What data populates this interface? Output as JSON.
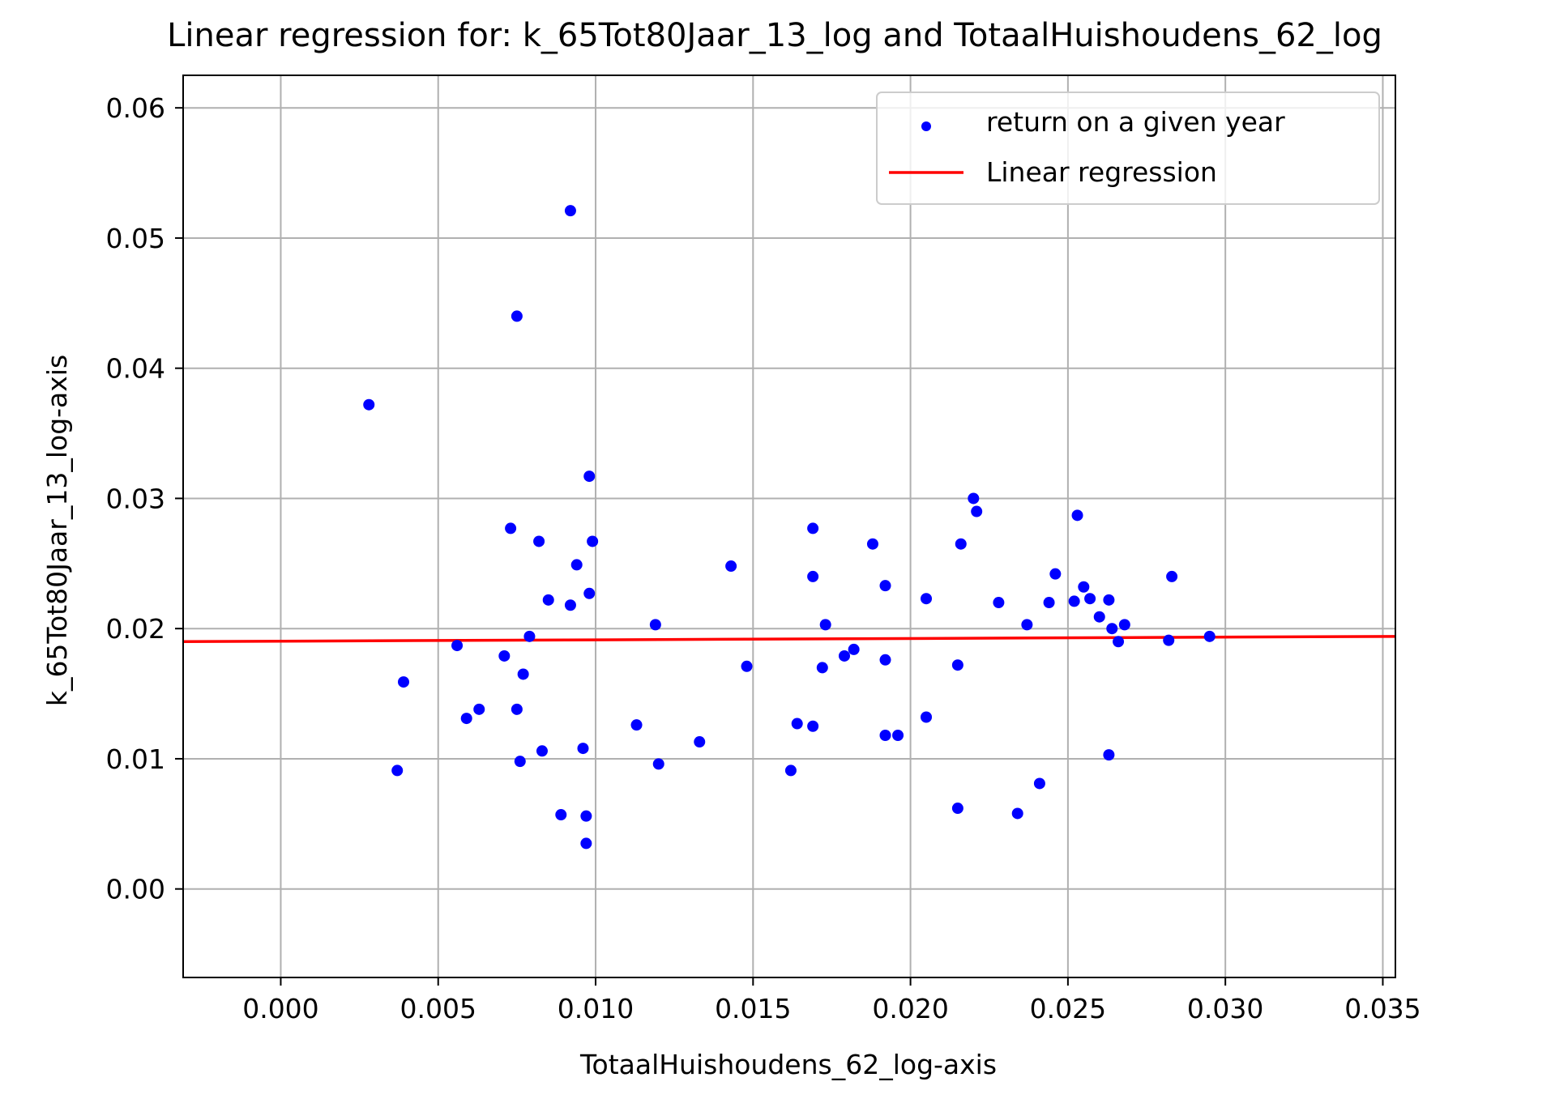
{
  "chart_data": {
    "type": "scatter",
    "title": "Linear regression for: k_65Tot80Jaar_13_log and TotaalHuishoudens_62_log",
    "xlabel": "TotaalHuishoudens_62_log-axis",
    "ylabel": "k_65Tot80Jaar_13_log-axis",
    "xlim": [
      -0.0031,
      0.0354
    ],
    "ylim": [
      -0.0068,
      0.0625
    ],
    "xticks": [
      0.0,
      0.005,
      0.01,
      0.015,
      0.02,
      0.025,
      0.03,
      0.035
    ],
    "xtick_labels": [
      "0.000",
      "0.005",
      "0.010",
      "0.015",
      "0.020",
      "0.025",
      "0.030",
      "0.035"
    ],
    "yticks": [
      0.0,
      0.01,
      0.02,
      0.03,
      0.04,
      0.05,
      0.06
    ],
    "ytick_labels": [
      "0.00",
      "0.01",
      "0.02",
      "0.03",
      "0.04",
      "0.05",
      "0.06"
    ],
    "grid": true,
    "legend_position": "top-right",
    "series": [
      {
        "name": "return on a given year",
        "kind": "scatter",
        "color": "#0000ff",
        "points": [
          [
            0.0028,
            0.0372
          ],
          [
            0.0037,
            0.0091
          ],
          [
            0.0039,
            0.0159
          ],
          [
            0.0056,
            0.0187
          ],
          [
            0.0059,
            0.0131
          ],
          [
            0.0063,
            0.0138
          ],
          [
            0.0071,
            0.0179
          ],
          [
            0.0073,
            0.0277
          ],
          [
            0.0075,
            0.044
          ],
          [
            0.0075,
            0.0138
          ],
          [
            0.0076,
            0.0098
          ],
          [
            0.0077,
            0.0165
          ],
          [
            0.0079,
            0.0194
          ],
          [
            0.0082,
            0.0267
          ],
          [
            0.0083,
            0.0106
          ],
          [
            0.0085,
            0.0222
          ],
          [
            0.0089,
            0.0057
          ],
          [
            0.0092,
            0.0218
          ],
          [
            0.0092,
            0.0521
          ],
          [
            0.0094,
            0.0249
          ],
          [
            0.0096,
            0.0108
          ],
          [
            0.0097,
            0.0035
          ],
          [
            0.0097,
            0.0056
          ],
          [
            0.0098,
            0.0227
          ],
          [
            0.0098,
            0.0317
          ],
          [
            0.0099,
            0.0267
          ],
          [
            0.0113,
            0.0126
          ],
          [
            0.0119,
            0.0203
          ],
          [
            0.012,
            0.0096
          ],
          [
            0.0133,
            0.0113
          ],
          [
            0.0143,
            0.0248
          ],
          [
            0.0148,
            0.0171
          ],
          [
            0.0162,
            0.0091
          ],
          [
            0.0164,
            0.0127
          ],
          [
            0.0169,
            0.0277
          ],
          [
            0.0169,
            0.024
          ],
          [
            0.0169,
            0.0125
          ],
          [
            0.0172,
            0.017
          ],
          [
            0.0173,
            0.0203
          ],
          [
            0.0179,
            0.0179
          ],
          [
            0.0182,
            0.0184
          ],
          [
            0.0188,
            0.0265
          ],
          [
            0.0192,
            0.0233
          ],
          [
            0.0192,
            0.0176
          ],
          [
            0.0192,
            0.0118
          ],
          [
            0.0196,
            0.0118
          ],
          [
            0.0205,
            0.0223
          ],
          [
            0.0205,
            0.0132
          ],
          [
            0.0215,
            0.0172
          ],
          [
            0.0215,
            0.0062
          ],
          [
            0.0216,
            0.0265
          ],
          [
            0.022,
            0.03
          ],
          [
            0.0221,
            0.029
          ],
          [
            0.0228,
            0.022
          ],
          [
            0.0234,
            0.0058
          ],
          [
            0.0237,
            0.0203
          ],
          [
            0.0241,
            0.0081
          ],
          [
            0.0244,
            0.022
          ],
          [
            0.0246,
            0.0242
          ],
          [
            0.0252,
            0.0221
          ],
          [
            0.0253,
            0.0287
          ],
          [
            0.0255,
            0.0232
          ],
          [
            0.0257,
            0.0223
          ],
          [
            0.026,
            0.0209
          ],
          [
            0.0263,
            0.0222
          ],
          [
            0.0263,
            0.0103
          ],
          [
            0.0264,
            0.02
          ],
          [
            0.0266,
            0.019
          ],
          [
            0.0268,
            0.0203
          ],
          [
            0.0282,
            0.0191
          ],
          [
            0.0283,
            0.024
          ],
          [
            0.0295,
            0.0194
          ]
        ]
      },
      {
        "name": "Linear regression",
        "kind": "line",
        "color": "#ff0000",
        "x": [
          -0.0031,
          0.0354
        ],
        "y": [
          0.019,
          0.0194
        ]
      }
    ]
  }
}
